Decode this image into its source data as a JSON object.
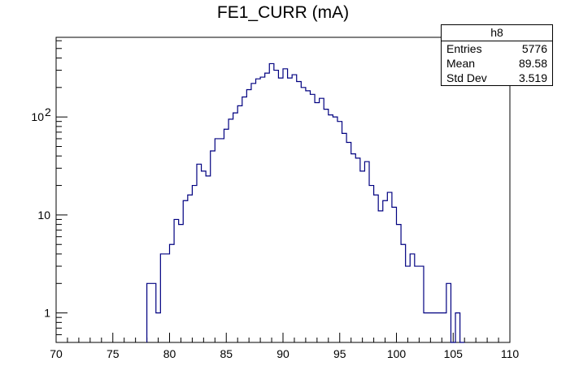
{
  "chart_data": {
    "type": "histogram",
    "title": "FE1_CURR (mA)",
    "xlim": [
      70,
      110
    ],
    "ylim": [
      0.5,
      650
    ],
    "yscale": "log",
    "bin_width": 0.4,
    "x_ticks": [
      "70",
      "75",
      "80",
      "85",
      "90",
      "95",
      "100",
      "105",
      "110"
    ],
    "y_ticks": [
      {
        "value": 1,
        "label": "1"
      },
      {
        "value": 10,
        "label": "10"
      },
      {
        "value": 100,
        "label": "10",
        "sup": "2"
      }
    ],
    "line_color": "#000080",
    "stats": {
      "name": "h8",
      "rows": [
        {
          "label": "Entries",
          "value": "5776"
        },
        {
          "label": "Mean",
          "value": "89.58"
        },
        {
          "label": "Std Dev",
          "value": "3.519"
        }
      ]
    },
    "bins": [
      {
        "x": 78.0,
        "y": 2
      },
      {
        "x": 78.4,
        "y": 2
      },
      {
        "x": 78.8,
        "y": 1
      },
      {
        "x": 79.2,
        "y": 4
      },
      {
        "x": 79.6,
        "y": 4
      },
      {
        "x": 80.0,
        "y": 5
      },
      {
        "x": 80.4,
        "y": 9
      },
      {
        "x": 80.8,
        "y": 8
      },
      {
        "x": 81.2,
        "y": 14
      },
      {
        "x": 81.6,
        "y": 16
      },
      {
        "x": 82.0,
        "y": 20
      },
      {
        "x": 82.4,
        "y": 33
      },
      {
        "x": 82.8,
        "y": 28
      },
      {
        "x": 83.2,
        "y": 25
      },
      {
        "x": 83.6,
        "y": 45
      },
      {
        "x": 84.0,
        "y": 60
      },
      {
        "x": 84.4,
        "y": 60
      },
      {
        "x": 84.8,
        "y": 75
      },
      {
        "x": 85.2,
        "y": 95
      },
      {
        "x": 85.6,
        "y": 110
      },
      {
        "x": 86.0,
        "y": 130
      },
      {
        "x": 86.4,
        "y": 160
      },
      {
        "x": 86.8,
        "y": 190
      },
      {
        "x": 87.2,
        "y": 220
      },
      {
        "x": 87.6,
        "y": 245
      },
      {
        "x": 88.0,
        "y": 255
      },
      {
        "x": 88.4,
        "y": 280
      },
      {
        "x": 88.8,
        "y": 350
      },
      {
        "x": 89.2,
        "y": 300
      },
      {
        "x": 89.6,
        "y": 250
      },
      {
        "x": 90.0,
        "y": 310
      },
      {
        "x": 90.4,
        "y": 250
      },
      {
        "x": 90.8,
        "y": 270
      },
      {
        "x": 91.2,
        "y": 230
      },
      {
        "x": 91.6,
        "y": 200
      },
      {
        "x": 92.0,
        "y": 185
      },
      {
        "x": 92.4,
        "y": 170
      },
      {
        "x": 92.8,
        "y": 140
      },
      {
        "x": 93.2,
        "y": 155
      },
      {
        "x": 93.6,
        "y": 120
      },
      {
        "x": 94.0,
        "y": 105
      },
      {
        "x": 94.4,
        "y": 100
      },
      {
        "x": 94.8,
        "y": 90
      },
      {
        "x": 95.2,
        "y": 68
      },
      {
        "x": 95.6,
        "y": 55
      },
      {
        "x": 96.0,
        "y": 42
      },
      {
        "x": 96.4,
        "y": 38
      },
      {
        "x": 96.8,
        "y": 28
      },
      {
        "x": 97.2,
        "y": 35
      },
      {
        "x": 97.6,
        "y": 20
      },
      {
        "x": 98.0,
        "y": 16
      },
      {
        "x": 98.4,
        "y": 11
      },
      {
        "x": 98.8,
        "y": 14
      },
      {
        "x": 99.2,
        "y": 17
      },
      {
        "x": 99.6,
        "y": 12
      },
      {
        "x": 100.0,
        "y": 8
      },
      {
        "x": 100.4,
        "y": 5
      },
      {
        "x": 100.8,
        "y": 3
      },
      {
        "x": 101.2,
        "y": 4
      },
      {
        "x": 101.6,
        "y": 3
      },
      {
        "x": 102.0,
        "y": 3
      },
      {
        "x": 102.4,
        "y": 1
      },
      {
        "x": 102.8,
        "y": 1
      },
      {
        "x": 103.2,
        "y": 1
      },
      {
        "x": 103.6,
        "y": 1
      },
      {
        "x": 104.0,
        "y": 1
      },
      {
        "x": 104.4,
        "y": 2
      },
      {
        "x": 104.8,
        "y": 0
      },
      {
        "x": 105.2,
        "y": 1
      },
      {
        "x": 105.6,
        "y": 0
      }
    ]
  }
}
